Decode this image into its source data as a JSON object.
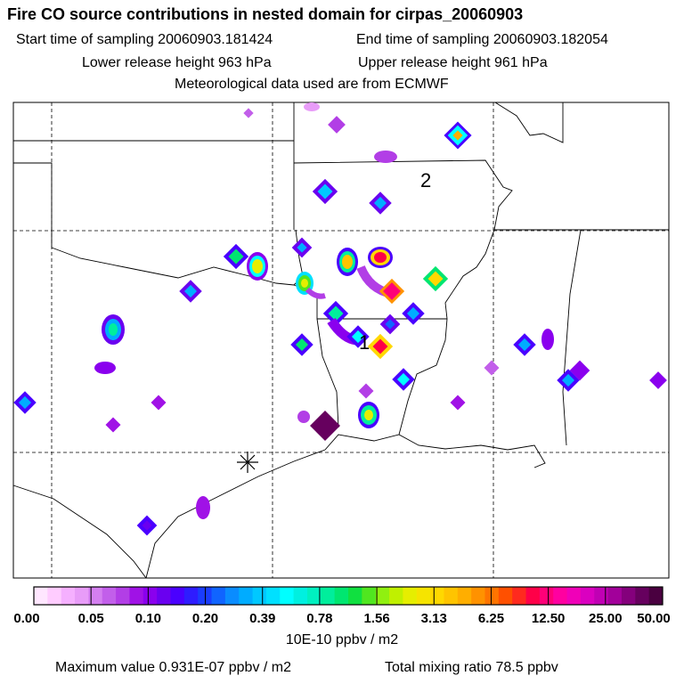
{
  "header": {
    "title": "Fire CO source contributions in nested domain for cirpas_20060903",
    "start_time": "Start time of sampling 20060903.181424",
    "end_time": "End time of sampling 20060903.182054",
    "lower_release": "Lower release height  963 hPa",
    "upper_release": "Upper release height  961 hPa",
    "met_data": "Meteorological data used are from ECMWF"
  },
  "map": {
    "markers": {
      "point1": "1",
      "point2": "2"
    }
  },
  "colorbar": {
    "ticks": [
      "0.00",
      "0.05",
      "0.10",
      "0.20",
      "0.39",
      "0.78",
      "1.56",
      "3.13",
      "6.25",
      "12.50",
      "25.00",
      "50.00"
    ],
    "units": "10E-10 ppbv / m2",
    "colors": [
      "#ffe6ff",
      "#ffccff",
      "#f5b0ff",
      "#e89cf8",
      "#d47ff0",
      "#c25fea",
      "#b23ee6",
      "#a012e6",
      "#8a00ee",
      "#6a00f0",
      "#4a00ff",
      "#2e1cff",
      "#1a3cff",
      "#1064ff",
      "#0a8cff",
      "#00acff",
      "#00c8ff",
      "#00e0ff",
      "#00ffff",
      "#00f0e0",
      "#00f0c0",
      "#00ee9c",
      "#00e670",
      "#10e040",
      "#50e620",
      "#90f010",
      "#c0f000",
      "#e6ee00",
      "#f6e400",
      "#ffd800",
      "#ffc400",
      "#ffae00",
      "#ff9200",
      "#ff7400",
      "#ff5000",
      "#ff2a1e",
      "#ff0048",
      "#ff0078",
      "#ff00a0",
      "#f000b8",
      "#da00c0",
      "#c000b4",
      "#a2009a",
      "#84007c",
      "#66005e",
      "#4a0040"
    ]
  },
  "footer": {
    "max_value": "Maximum value  0.931E-07 ppbv / m2",
    "total_mixing": "Total mixing ratio      78.5 ppbv"
  },
  "chart_data": {
    "type": "heatmap",
    "title": "Fire CO source contributions in nested domain for cirpas_20060903",
    "colorbar_ticks": [
      0.0,
      0.05,
      0.1,
      0.2,
      0.39,
      0.78,
      1.56,
      3.13,
      6.25,
      12.5,
      25.0,
      50.0
    ],
    "units": "10E-10 ppbv / m2",
    "max_value_ppbv_per_m2": 9.31e-08,
    "total_mixing_ratio_ppbv": 78.5,
    "release_heights_hPa": [
      963,
      961
    ],
    "grid": true
  }
}
